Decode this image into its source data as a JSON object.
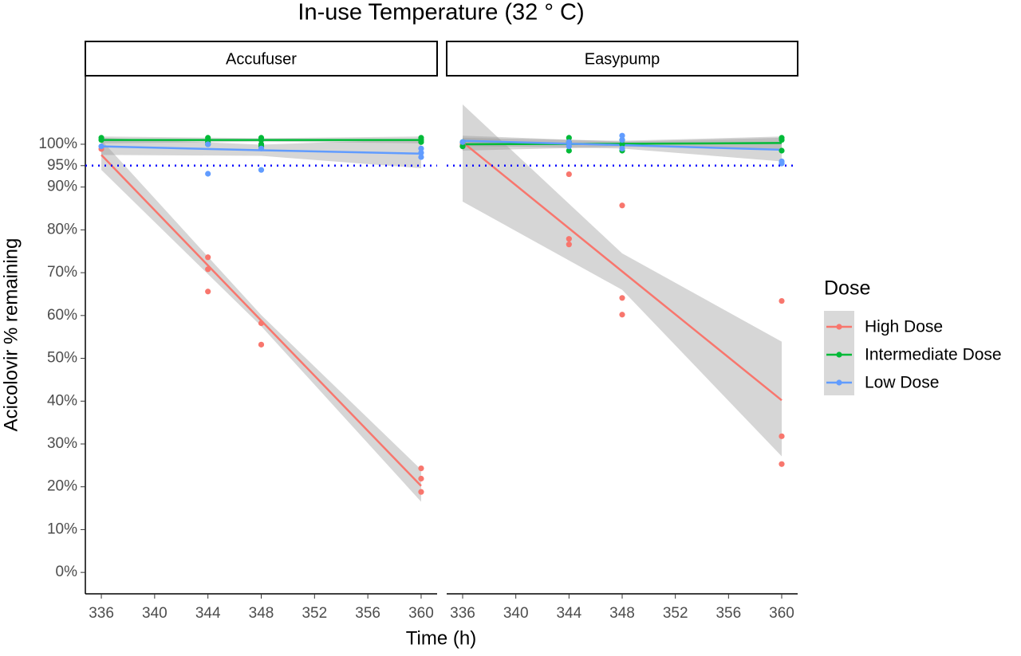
{
  "chart_data": {
    "type": "scatter",
    "title": "In-use Temperature (32 ° C)",
    "x_label": "Time (h)",
    "y_label": "Acicolovir % remaining",
    "legend_title": "Dose",
    "series": [
      {
        "name": "High Dose",
        "color": "#F8766D"
      },
      {
        "name": "Intermediate Dose",
        "color": "#00BA38"
      },
      {
        "name": "Low Dose",
        "color": "#619CFF"
      }
    ],
    "xlim": [
      334.8,
      361.2
    ],
    "ylim": [
      -5,
      116
    ],
    "xticks": [
      336,
      340,
      344,
      348,
      352,
      356,
      360
    ],
    "yticks": [
      {
        "value": 0,
        "label": "0%"
      },
      {
        "value": 10,
        "label": "10%"
      },
      {
        "value": 20,
        "label": "20%"
      },
      {
        "value": 30,
        "label": "30%"
      },
      {
        "value": 40,
        "label": "40%"
      },
      {
        "value": 50,
        "label": "50%"
      },
      {
        "value": 60,
        "label": "60%"
      },
      {
        "value": 70,
        "label": "70%"
      },
      {
        "value": 80,
        "label": "80%"
      },
      {
        "value": 90,
        "label": "90%"
      },
      {
        "value": 95,
        "label": "95%"
      },
      {
        "value": 100,
        "label": "100%"
      }
    ],
    "reference_line": {
      "value": 95,
      "color": "#0000FF"
    },
    "panels": [
      {
        "name": "Accufuser",
        "points": [
          {
            "x": [
              336,
              344,
              344,
              344,
              348,
              348,
              360,
              360,
              360
            ],
            "values": [
              98.9,
              73.6,
              70.8,
              65.6,
              58.2,
              53.2,
              24.3,
              21.9,
              18.8
            ]
          },
          {
            "x": [
              336,
              336,
              344,
              344,
              344,
              344,
              348,
              348,
              348,
              348,
              360,
              360,
              360
            ],
            "values": [
              101.5,
              101,
              101.5,
              101,
              100.5,
              100,
              101.5,
              101,
              100,
              99.5,
              101.5,
              101,
              100.5
            ]
          },
          {
            "x": [
              336,
              344,
              344,
              348,
              348,
              360,
              360,
              360
            ],
            "values": [
              99.5,
              93.1,
              100,
              94,
              99,
              99,
              98,
              97
            ]
          }
        ],
        "fits": [
          {
            "x": [
              336,
              348,
              360
            ],
            "values": [
              97.5,
              58.8,
              20.2
            ],
            "lower": [
              94,
              57.5,
              16.5
            ],
            "upper": [
              101,
              60.1,
              24
            ]
          },
          {
            "x": [
              336,
              348,
              360
            ],
            "values": [
              101,
              101,
              101
            ],
            "lower": [
              100.2,
              100.6,
              100.2
            ],
            "upper": [
              101.8,
              101.4,
              101.8
            ]
          },
          {
            "x": [
              336,
              348,
              360
            ],
            "values": [
              99.5,
              98.6,
              97.8
            ],
            "lower": [
              97.5,
              97.3,
              94.4
            ],
            "upper": [
              101.5,
              99.9,
              101.2
            ]
          }
        ]
      },
      {
        "name": "Easypump",
        "points": [
          {
            "x": [
              336,
              336,
              344,
              344,
              344,
              348,
              348,
              348,
              360,
              360,
              360
            ],
            "values": [
              100,
              99.5,
              93,
              77.9,
              76.6,
              85.7,
              64.1,
              60.2,
              63.4,
              31.8,
              25.3
            ]
          },
          {
            "x": [
              336,
              336,
              344,
              344,
              344,
              348,
              348,
              348,
              360,
              360,
              360
            ],
            "values": [
              100.5,
              99.5,
              101.5,
              100.5,
              98.5,
              101,
              100,
              98.5,
              101.5,
              101,
              98.5
            ]
          },
          {
            "x": [
              336,
              344,
              344,
              348,
              348,
              348,
              360,
              360
            ],
            "values": [
              100.5,
              100.5,
              99.5,
              102,
              101,
              99,
              95.5,
              96
            ]
          }
        ],
        "fits": [
          {
            "x": [
              336,
              348,
              360
            ],
            "values": [
              100.5,
              70.3,
              40.2
            ],
            "lower": [
              86.6,
              66,
              27.1
            ],
            "upper": [
              109.3,
              74.5,
              53.9
            ]
          },
          {
            "x": [
              336,
              348,
              360
            ],
            "values": [
              100,
              100.1,
              100.3
            ],
            "lower": [
              98.5,
              99.4,
              98.8
            ],
            "upper": [
              101.5,
              100.8,
              101.8
            ]
          },
          {
            "x": [
              336,
              348,
              360
            ],
            "values": [
              100.8,
              99.8,
              98.7
            ],
            "lower": [
              99.6,
              99,
              96
            ],
            "upper": [
              102,
              100.6,
              101.5
            ]
          }
        ]
      }
    ]
  }
}
